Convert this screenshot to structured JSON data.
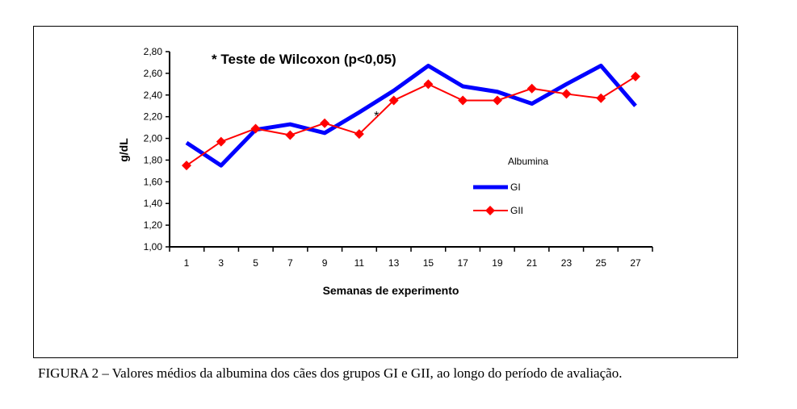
{
  "chart_data": {
    "type": "line",
    "title": "* Teste de Wilcoxon (p<0,05)",
    "xlabel": "Semanas de experimento",
    "ylabel": "g/dL",
    "x": [
      1,
      3,
      5,
      7,
      9,
      11,
      13,
      15,
      17,
      19,
      21,
      23,
      25,
      27
    ],
    "x_tick_labels": [
      "1",
      "3",
      "5",
      "7",
      "9",
      "11",
      "13",
      "15",
      "17",
      "19",
      "21",
      "23",
      "25",
      "27"
    ],
    "y_tick_labels": [
      "1,00",
      "1,20",
      "1,40",
      "1,60",
      "1,80",
      "2,00",
      "2,20",
      "2,40",
      "2,60",
      "2,80"
    ],
    "ylim": [
      1.0,
      2.8
    ],
    "grid": false,
    "legend_title": "Albumina",
    "legend_placement": "right",
    "series": [
      {
        "name": "GI",
        "color": "#0000ff",
        "values": [
          1.96,
          1.75,
          2.08,
          2.13,
          2.05,
          2.24,
          2.44,
          2.67,
          2.48,
          2.43,
          2.32,
          2.5,
          2.67,
          2.3
        ]
      },
      {
        "name": "GII",
        "color": "#ff0000",
        "marker": "diamond",
        "values": [
          1.75,
          1.97,
          2.09,
          2.03,
          2.14,
          2.04,
          2.35,
          2.5,
          2.35,
          2.35,
          2.46,
          2.41,
          2.37,
          2.57
        ]
      }
    ],
    "annotations": [
      {
        "text": "*",
        "x": 12,
        "y": 2.22
      }
    ]
  },
  "caption": "FIGURA 2 – Valores médios da albumina dos cães dos grupos GI e GII, ao longo do período de avaliação."
}
